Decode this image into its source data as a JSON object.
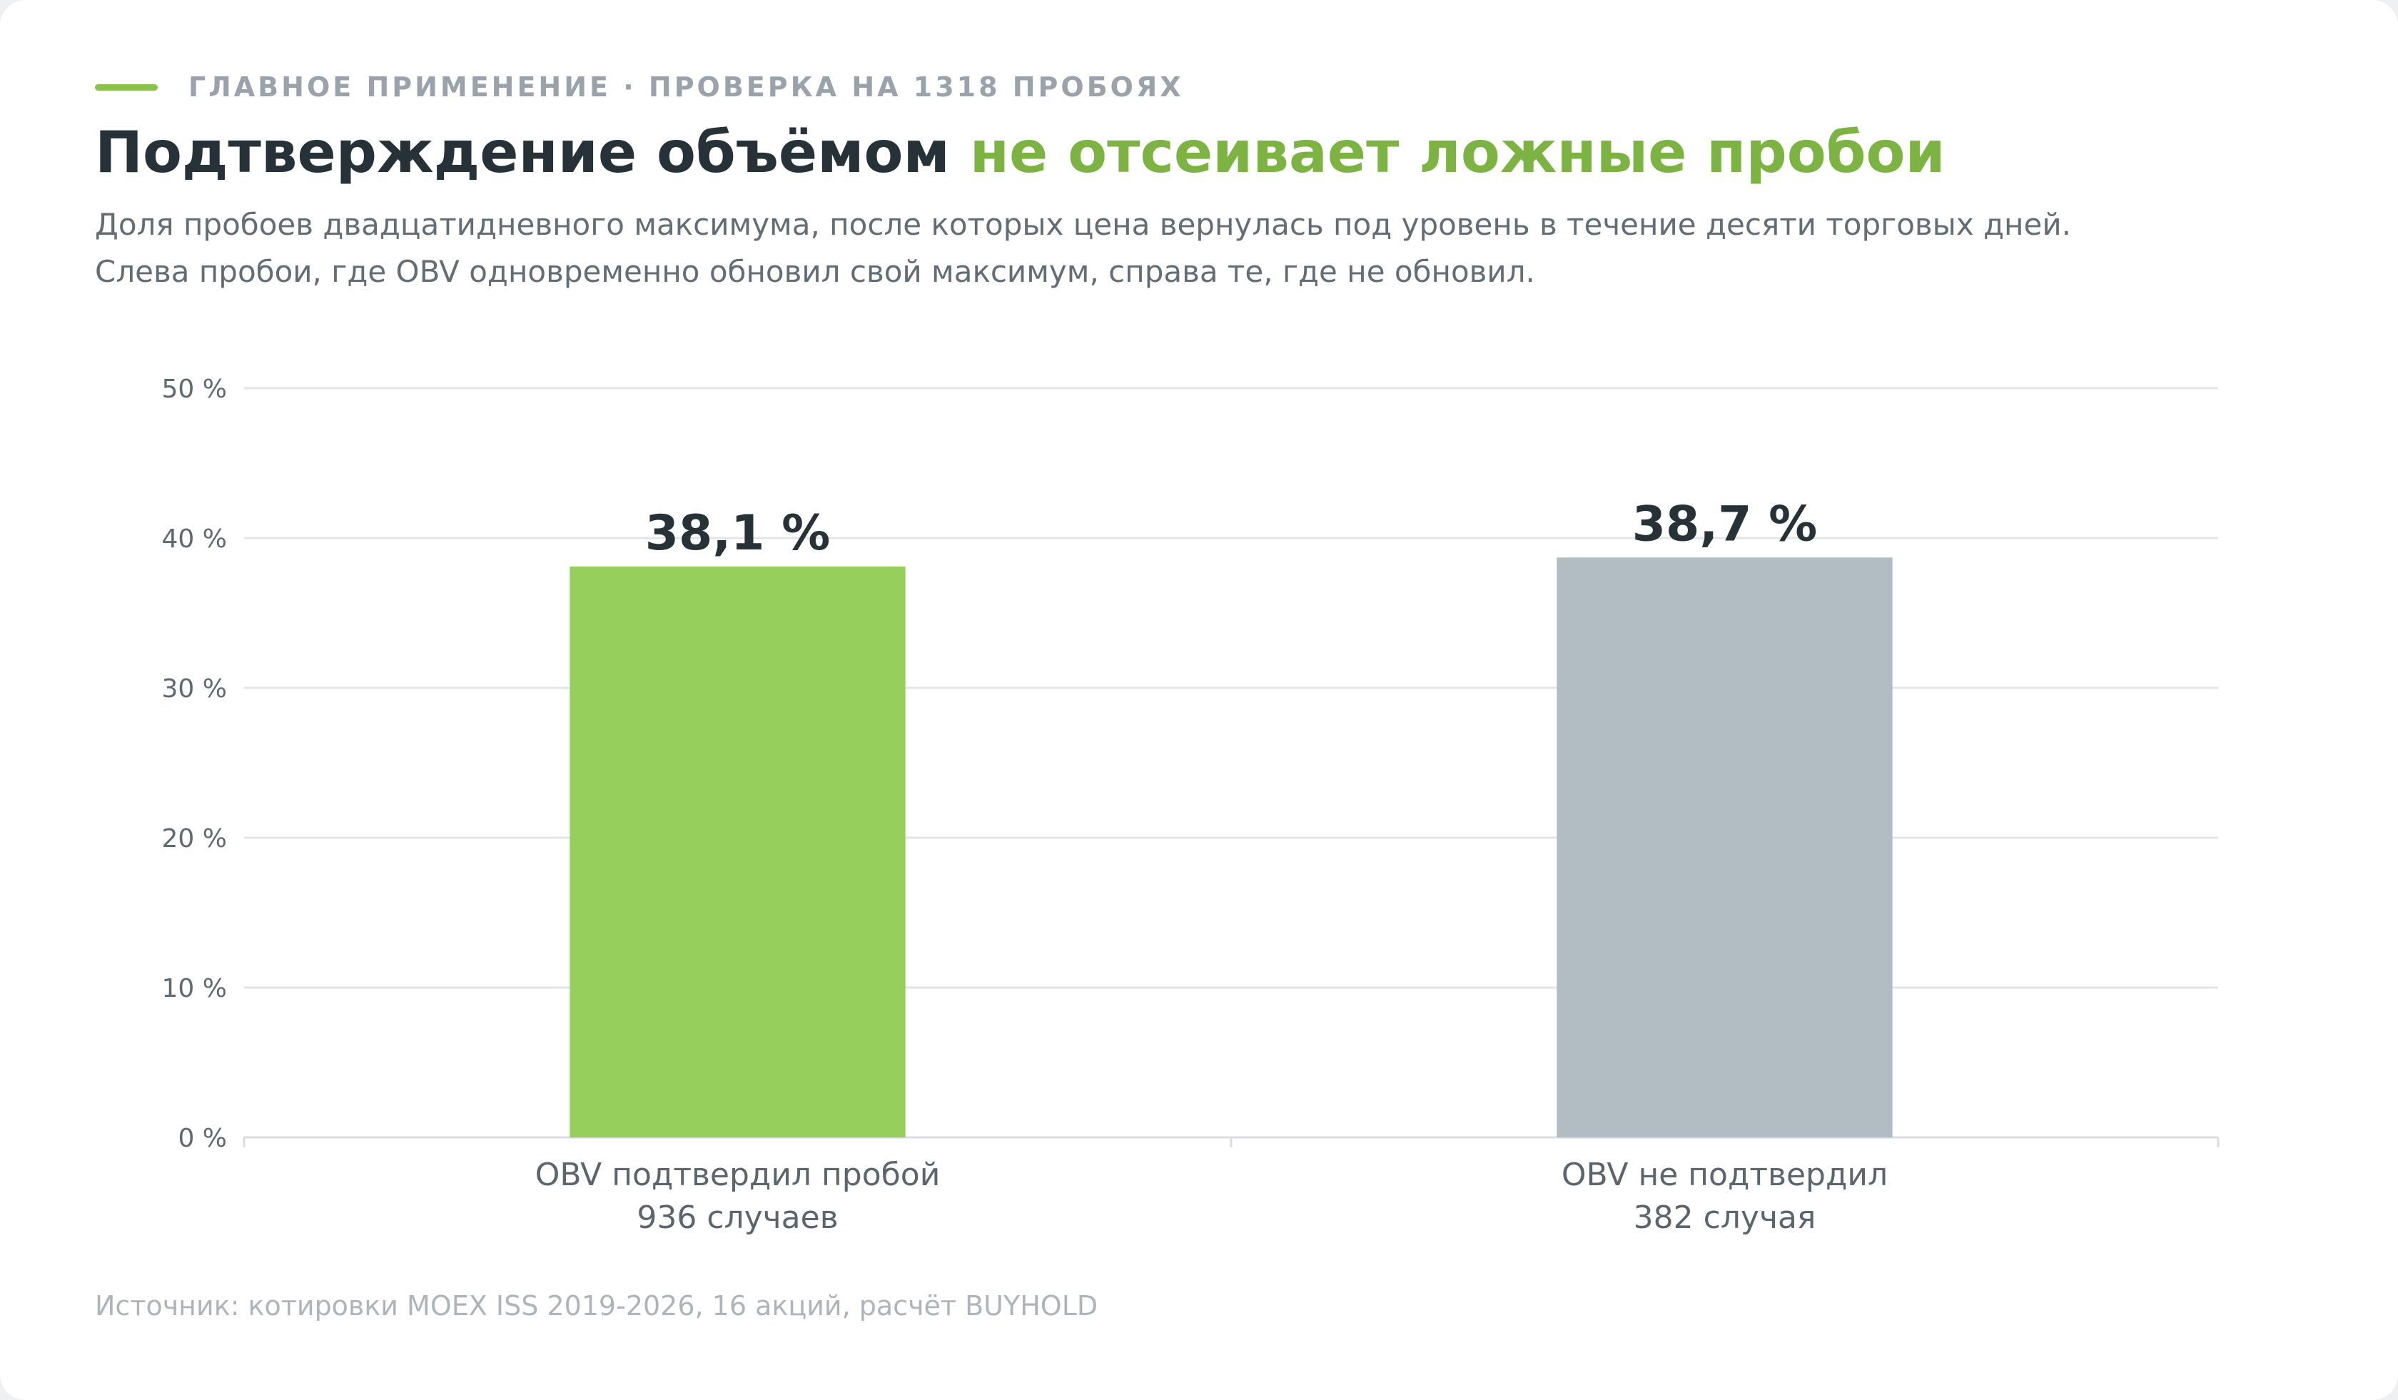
{
  "header": {
    "eyebrow": "ГЛАВНОЕ ПРИМЕНЕНИЕ · ПРОВЕРКА НА 1318 ПРОБОЯХ",
    "title_main": "Подтверждение объёмом",
    "title_accent": "не отсеивает ложные пробои",
    "subtitle_line1": "Доля пробоев двадцатидневного максимума, после которых цена вернулась под уровень в течение десяти торговых дней.",
    "subtitle_line2": "Слева пробои, где OBV одновременно обновил свой максимум, справа те, где не обновил."
  },
  "colors": {
    "accent": "#7cb342",
    "bar_confirmed": "#97cf5c",
    "bar_not_confirmed": "#b2bcc3",
    "title": "#263238",
    "grid": "#e2e5e8"
  },
  "chart_data": {
    "type": "bar",
    "categories": [
      "OBV подтвердил пробой",
      "OBV не подтвердил"
    ],
    "category_counts": [
      "936 случаев",
      "382 случая"
    ],
    "values": [
      38.1,
      38.7
    ],
    "value_labels": [
      "38,1 %",
      "38,7 %"
    ],
    "ylim": [
      0,
      50
    ],
    "y_ticks": [
      0,
      10,
      20,
      30,
      40,
      50
    ],
    "y_tick_labels": [
      "0 %",
      "10 %",
      "20 %",
      "30 %",
      "40 %",
      "50 %"
    ],
    "grid": true,
    "bar_colors": [
      "#97cf5c",
      "#b2bcc3"
    ]
  },
  "footer": {
    "source": "Источник: котировки MOEX ISS 2019-2026, 16 акций, расчёт BUYHOLD"
  }
}
